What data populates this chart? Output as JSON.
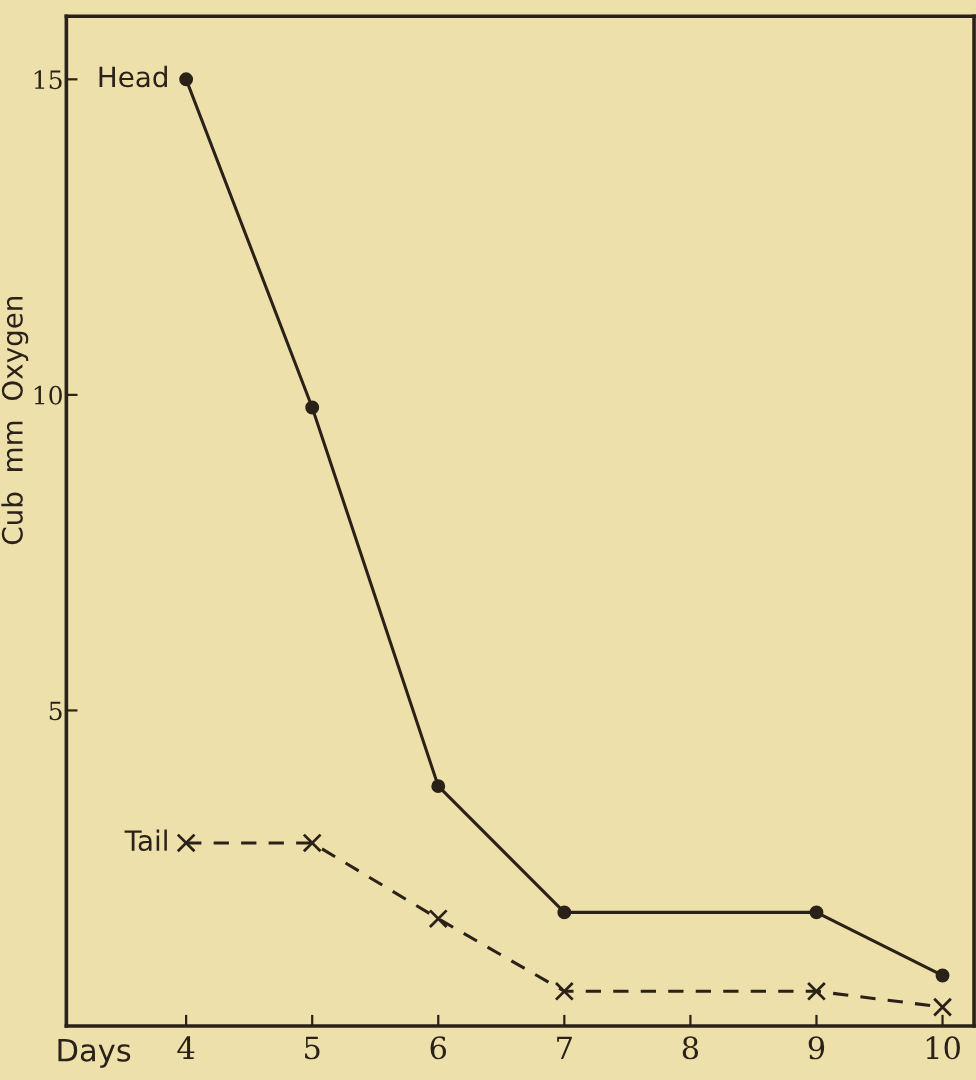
{
  "chart_data": {
    "type": "line",
    "xlabel": "Days",
    "ylabel": "Cub  mm  Oxygen",
    "x": [
      4,
      5,
      6,
      7,
      9,
      10
    ],
    "series": [
      {
        "name": "Head",
        "color": "#2a2218",
        "values": [
          15,
          9.8,
          3.8,
          1.8,
          1.8,
          0.8
        ],
        "marker": "circle",
        "line_style": "solid"
      },
      {
        "name": "Tail",
        "color": "#2a2218",
        "values": [
          2.9,
          2.9,
          1.7,
          0.55,
          0.55,
          0.3
        ],
        "marker": "cross",
        "line_style": "dashed"
      }
    ],
    "xlim": [
      3.05,
      10.25
    ],
    "ylim": [
      0,
      16
    ],
    "xticks": [
      4,
      5,
      6,
      7,
      8,
      9,
      10
    ],
    "yticks": [
      5,
      10,
      15
    ],
    "grid": false,
    "legend": false
  }
}
